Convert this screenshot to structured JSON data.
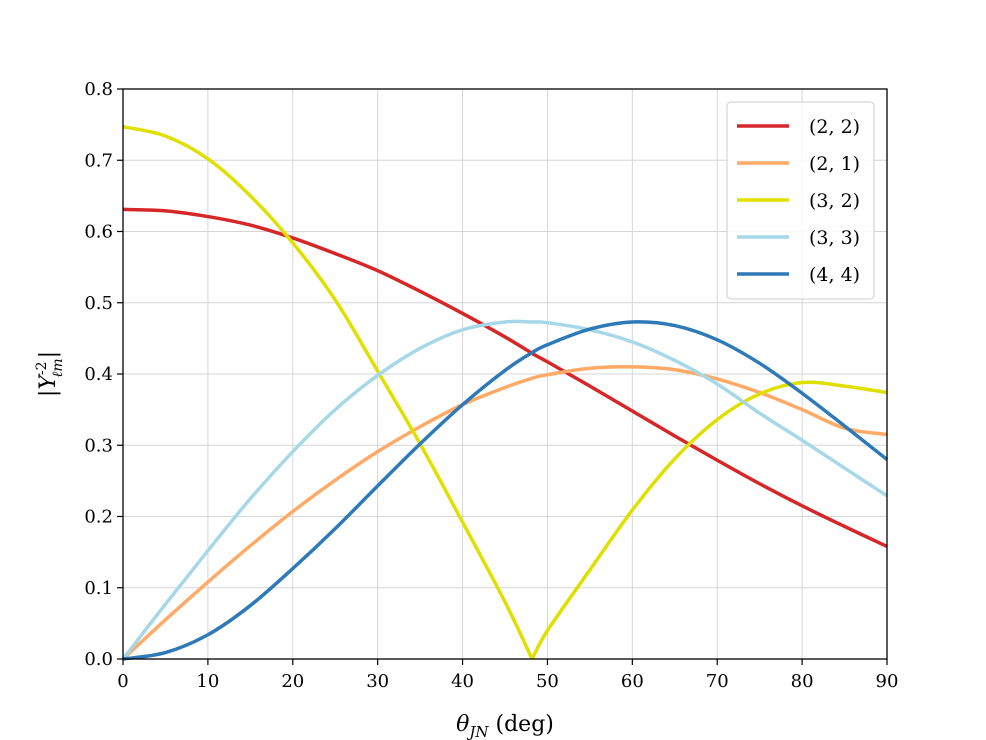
{
  "chart_data": {
    "type": "line",
    "title": "",
    "xlabel": "θ_{JN} (deg)",
    "ylabel": "|Y_{ℓm}^{-2}|",
    "xlim": [
      0,
      90
    ],
    "ylim": [
      0,
      0.8
    ],
    "xticks": [
      "0",
      "10",
      "20",
      "30",
      "40",
      "50",
      "60",
      "70",
      "80",
      "90"
    ],
    "yticks": [
      "0.0",
      "0.1",
      "0.2",
      "0.3",
      "0.4",
      "0.5",
      "0.6",
      "0.7",
      "0.8"
    ],
    "grid": true,
    "legend_position": "top-right",
    "x": [
      0,
      5,
      10,
      15,
      20,
      25,
      30,
      35,
      40,
      45,
      48.19,
      50,
      55,
      60,
      65,
      70,
      75,
      80,
      85,
      90
    ],
    "series": [
      {
        "name": "(2, 2)",
        "color": "#d62728",
        "values": [
          0.631,
          0.629,
          0.621,
          0.609,
          0.591,
          0.569,
          0.545,
          0.516,
          0.485,
          0.452,
          0.429,
          0.417,
          0.383,
          0.348,
          0.313,
          0.279,
          0.246,
          0.215,
          0.186,
          0.158
        ]
      },
      {
        "name": "(2, 1)",
        "color": "#ffaa66",
        "values": [
          0.0,
          0.055,
          0.108,
          0.159,
          0.207,
          0.251,
          0.291,
          0.326,
          0.357,
          0.381,
          0.394,
          0.399,
          0.408,
          0.41,
          0.406,
          0.393,
          0.374,
          0.35,
          0.324,
          0.315
        ]
      },
      {
        "name": "(3, 2)",
        "color": "#e0e000",
        "values": [
          0.747,
          0.734,
          0.702,
          0.65,
          0.584,
          0.504,
          0.404,
          0.302,
          0.192,
          0.08,
          0.0,
          0.04,
          0.125,
          0.209,
          0.281,
          0.336,
          0.372,
          0.388,
          0.383,
          0.374
        ]
      },
      {
        "name": "(3, 3)",
        "color": "#a6d8e8",
        "values": [
          0.0,
          0.077,
          0.152,
          0.225,
          0.291,
          0.35,
          0.398,
          0.436,
          0.462,
          0.473,
          0.473,
          0.472,
          0.462,
          0.445,
          0.419,
          0.386,
          0.345,
          0.307,
          0.268,
          0.229
        ]
      },
      {
        "name": "(4, 4)",
        "color": "#2e7ab8",
        "values": [
          0.0,
          0.009,
          0.034,
          0.075,
          0.127,
          0.183,
          0.243,
          0.302,
          0.357,
          0.405,
          0.43,
          0.441,
          0.463,
          0.473,
          0.468,
          0.448,
          0.415,
          0.373,
          0.327,
          0.28
        ]
      }
    ]
  }
}
